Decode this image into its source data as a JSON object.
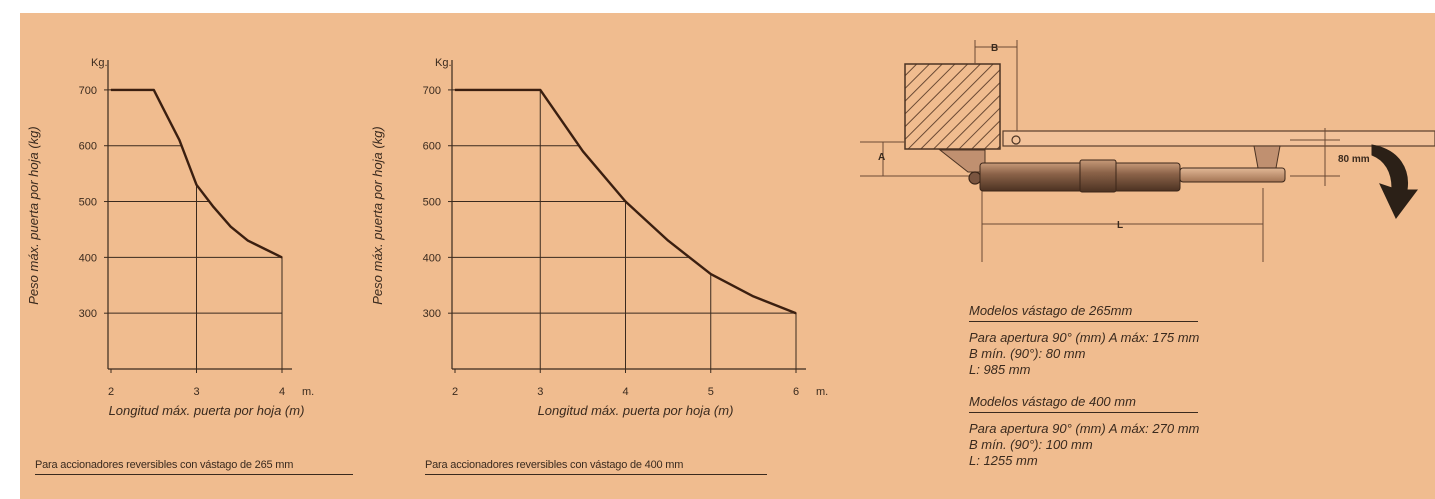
{
  "chart_data": [
    {
      "type": "line",
      "title": "",
      "xlabel": "Longitud máx. puerta por hoja (m)",
      "ylabel": "Peso máx. puerta por hoja (kg)",
      "y_unit_label": "Kg.",
      "x_unit_label": "m.",
      "xlim": [
        2,
        4
      ],
      "ylim": [
        200,
        750
      ],
      "x_ticks": [
        "2",
        "3",
        "4"
      ],
      "y_ticks": [
        "700",
        "600",
        "500",
        "400",
        "300"
      ],
      "grid": true,
      "x": [
        2,
        2.5,
        2.6,
        2.8,
        3,
        3.2,
        3.4,
        3.6,
        3.8,
        4
      ],
      "y": [
        700,
        700,
        670,
        610,
        530,
        490,
        455,
        430,
        415,
        400
      ],
      "caption": "Para accionadores reversibles con vástago de 265 mm"
    },
    {
      "type": "line",
      "title": "",
      "xlabel": "Longitud máx. puerta por hoja (m)",
      "ylabel": "Peso máx. puerta por hoja (kg)",
      "y_unit_label": "Kg.",
      "x_unit_label": "m.",
      "xlim": [
        2,
        6
      ],
      "ylim": [
        200,
        750
      ],
      "x_ticks": [
        "2",
        "3",
        "4",
        "5",
        "6"
      ],
      "y_ticks": [
        "700",
        "600",
        "500",
        "400",
        "300"
      ],
      "grid": true,
      "x": [
        2,
        3,
        3.5,
        4,
        4.5,
        5,
        5.5,
        6
      ],
      "y": [
        700,
        700,
        590,
        500,
        430,
        370,
        330,
        300
      ],
      "caption": "Para accionadores reversibles con vástago de 400 mm"
    }
  ],
  "diagram": {
    "label_a": "A",
    "label_b": "B",
    "label_l": "L",
    "label_80": "80 mm"
  },
  "specs": {
    "model1_heading": "Modelos vástago de 265mm",
    "model1_lines": [
      "Para apertura 90° (mm) A máx: 175 mm",
      "B mín. (90°): 80 mm",
      "L: 985 mm"
    ],
    "model2_heading": "Modelos vástago de 400 mm",
    "model2_lines": [
      "Para apertura 90° (mm) A máx: 270 mm",
      "B mín. (90°): 100 mm",
      "L: 1255 mm"
    ]
  },
  "colors": {
    "background": "#f0bc8f",
    "ink": "#3a2a1e",
    "curve": "#3b1f10"
  }
}
